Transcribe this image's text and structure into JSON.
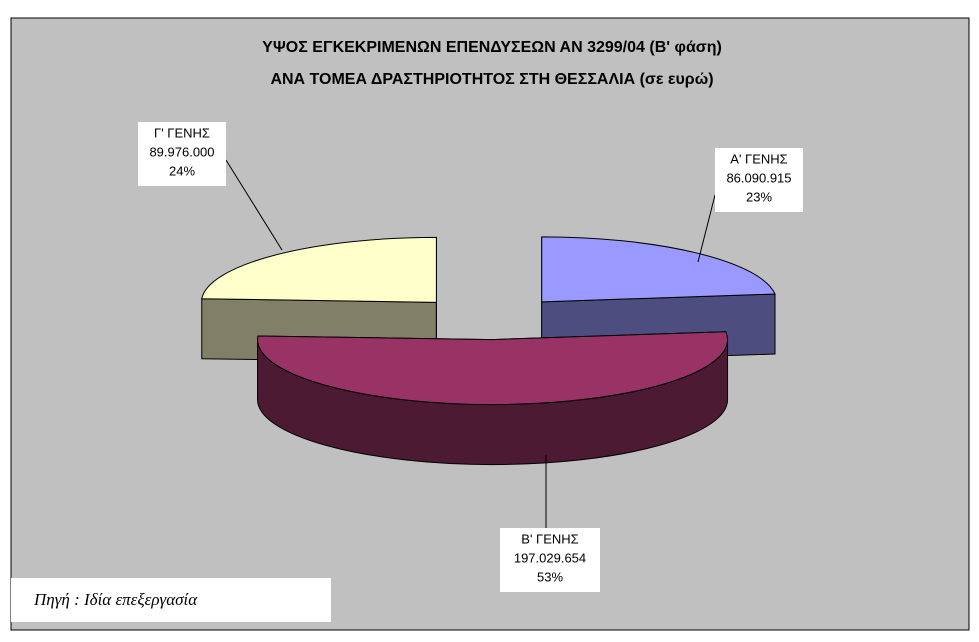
{
  "chart_data": {
    "type": "pie3d",
    "title": "ΥΨΟΣ ΕΓΚΕΚΡΙΜΕΝΩΝ  ΕΠΕΝΔΥΣΕΩΝ  ΑΝ 3299/04 (Β' φάση)",
    "subtitle": "ΑΝΑ ΤΟΜΕΑ ΔΡΑΣΤΗΡΙΟΤΗΤΟΣ  ΣΤΗ ΘΕΣΣΑΛΙΑ (σε ευρώ)",
    "categories": [
      "Α' ΓΕΝΗΣ",
      "Β' ΓΕΝΗΣ",
      "Γ' ΓΕΝΗΣ"
    ],
    "values": [
      86090915,
      197029654,
      89976000
    ],
    "value_labels": [
      "86.090.915",
      "197.029.654",
      "89.976.000"
    ],
    "percents": [
      23,
      53,
      24
    ],
    "percent_labels": [
      "23%",
      "53%",
      "24%"
    ],
    "colors": [
      "#9999ff",
      "#993366",
      "#ffffcc"
    ],
    "source": "Πηγή : Ιδία επεξεργασία"
  }
}
